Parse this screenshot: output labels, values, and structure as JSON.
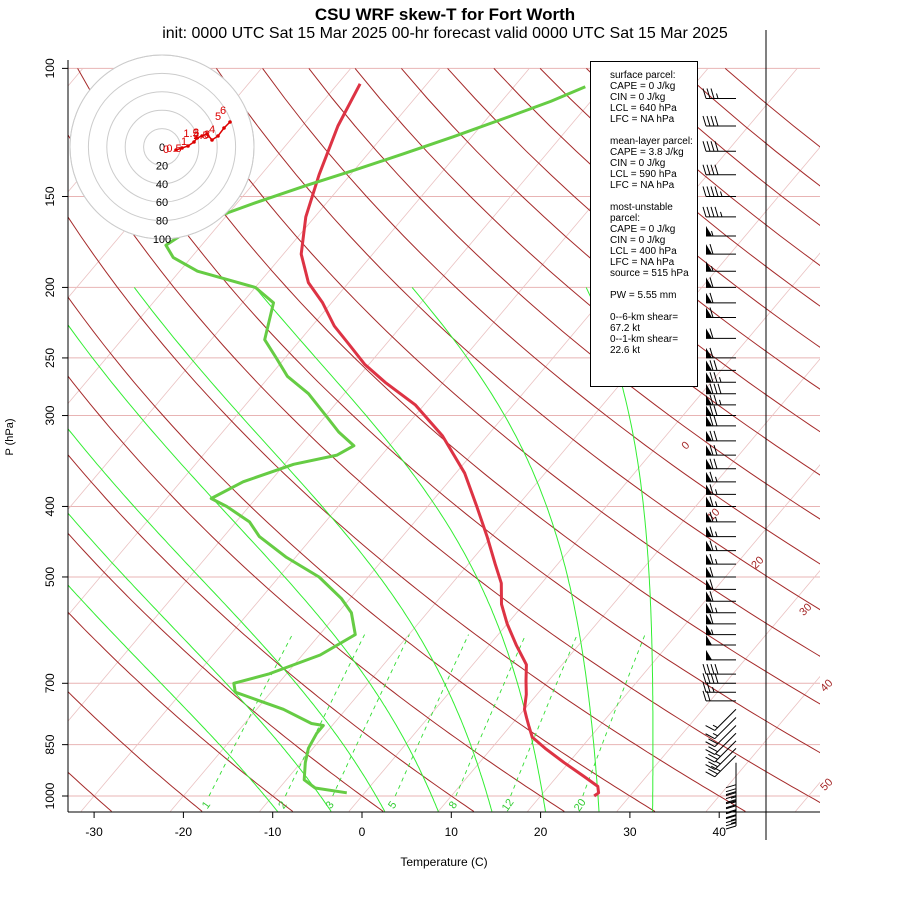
{
  "header": {
    "title": "CSU WRF skew-T for Fort Worth",
    "subtitle": "init: 0000 UTC Sat 15 Mar 2025    00-hr forecast valid 0000 UTC Sat 15 Mar 2025"
  },
  "chart_data": {
    "type": "line",
    "title": "CSU WRF skew-T for Fort Worth",
    "xlabel": "Temperature (C)",
    "ylabel": "P (hPa)",
    "xlim": [
      -33,
      50
    ],
    "ylim": [
      1050,
      100
    ],
    "x_ticks": [
      "-30",
      "-20",
      "-10",
      "0",
      "10",
      "20",
      "30",
      "40"
    ],
    "y_ticks": [
      "100",
      "150",
      "200",
      "250",
      "300",
      "400",
      "500",
      "700",
      "850",
      "1000"
    ],
    "isotherm_labels": [
      "0",
      "10",
      "20",
      "30",
      "40",
      "50"
    ],
    "mixing_ratio_labels": [
      "1",
      "2",
      "3",
      "5",
      "8",
      "12",
      "20"
    ],
    "series": [
      {
        "name": "Temperature",
        "color": "#dd3344",
        "points": [
          [
            26.0,
            1000
          ],
          [
            26.2,
            990
          ],
          [
            25.5,
            970
          ],
          [
            23.0,
            940
          ],
          [
            19.5,
            900
          ],
          [
            16.0,
            860
          ],
          [
            13.5,
            830
          ],
          [
            12.0,
            800
          ],
          [
            11.0,
            780
          ],
          [
            10.0,
            760
          ],
          [
            8.8,
            725
          ],
          [
            7.5,
            695
          ],
          [
            6.0,
            660
          ],
          [
            3.0,
            620
          ],
          [
            0.0,
            580
          ],
          [
            -2.5,
            545
          ],
          [
            -4.5,
            510
          ],
          [
            -7.0,
            480
          ],
          [
            -10.5,
            440
          ],
          [
            -14.5,
            400
          ],
          [
            -19.0,
            360
          ],
          [
            -25.0,
            320
          ],
          [
            -31.0,
            290
          ],
          [
            -36.5,
            270
          ],
          [
            -40.5,
            255
          ],
          [
            -44.0,
            240
          ],
          [
            -47.5,
            226
          ],
          [
            -51.0,
            210
          ],
          [
            -54.5,
            197
          ],
          [
            -58.0,
            180
          ],
          [
            -61.0,
            160
          ],
          [
            -63.5,
            140
          ],
          [
            -66.0,
            120
          ],
          [
            -67.5,
            105
          ]
        ]
      },
      {
        "name": "Dewpoint",
        "color": "#66cc44",
        "points": [
          [
            -2.0,
            990
          ],
          [
            -6.0,
            975
          ],
          [
            -8.0,
            950
          ],
          [
            -9.5,
            900
          ],
          [
            -10.5,
            860
          ],
          [
            -11.0,
            820
          ],
          [
            -11.0,
            800
          ],
          [
            -12.5,
            795
          ],
          [
            -17.0,
            760
          ],
          [
            -24.0,
            720
          ],
          [
            -25.0,
            700
          ],
          [
            -22.0,
            680
          ],
          [
            -18.0,
            640
          ],
          [
            -16.0,
            600
          ],
          [
            -18.5,
            560
          ],
          [
            -21.0,
            535
          ],
          [
            -25.5,
            500
          ],
          [
            -31.0,
            470
          ],
          [
            -36.0,
            440
          ],
          [
            -38.5,
            420
          ],
          [
            -42.5,
            400
          ],
          [
            -45.0,
            390
          ],
          [
            -43.0,
            370
          ],
          [
            -39.0,
            350
          ],
          [
            -35.0,
            340
          ],
          [
            -34.0,
            330
          ],
          [
            -37.0,
            316
          ],
          [
            -40.0,
            300
          ],
          [
            -44.0,
            280
          ],
          [
            -48.0,
            265
          ],
          [
            -51.0,
            250
          ],
          [
            -54.0,
            236
          ],
          [
            -56.5,
            210
          ],
          [
            -60.0,
            200
          ],
          [
            -68.0,
            190
          ],
          [
            -72.0,
            182
          ],
          [
            -74.0,
            175
          ],
          [
            -73.0,
            168
          ],
          [
            -71.0,
            160
          ],
          [
            -68.0,
            153
          ],
          [
            -64.0,
            145
          ],
          [
            -60.0,
            138
          ],
          [
            -56.0,
            131
          ],
          [
            -52.0,
            124
          ],
          [
            -48.0,
            117
          ],
          [
            -44.5,
            111
          ],
          [
            -42.0,
            106
          ]
        ]
      }
    ],
    "wind_barbs": [
      [
        1000,
        "S",
        15
      ],
      [
        990,
        "S",
        15
      ],
      [
        980,
        "S",
        20
      ],
      [
        965,
        "S",
        20
      ],
      [
        950,
        "S",
        25
      ],
      [
        935,
        "S",
        25
      ],
      [
        920,
        "S",
        30
      ],
      [
        900,
        "S",
        30
      ],
      [
        880,
        "SW",
        30
      ],
      [
        860,
        "SW",
        25
      ],
      [
        840,
        "SW",
        25
      ],
      [
        820,
        "SW",
        20
      ],
      [
        800,
        "SW",
        20
      ],
      [
        780,
        "SW",
        15
      ],
      [
        760,
        "SW",
        15
      ],
      [
        740,
        "W",
        20
      ],
      [
        720,
        "W",
        25
      ],
      [
        700,
        "W",
        40
      ],
      [
        680,
        "W",
        40
      ],
      [
        650,
        "W",
        50
      ],
      [
        620,
        "W",
        50
      ],
      [
        600,
        "W",
        55
      ],
      [
        580,
        "W",
        60
      ],
      [
        560,
        "W",
        65
      ],
      [
        540,
        "W",
        60
      ],
      [
        520,
        "W",
        60
      ],
      [
        500,
        "W",
        60
      ],
      [
        480,
        "W",
        65
      ],
      [
        460,
        "W",
        65
      ],
      [
        440,
        "W",
        65
      ],
      [
        420,
        "W",
        65
      ],
      [
        400,
        "W",
        65
      ],
      [
        385,
        "W",
        65
      ],
      [
        370,
        "W",
        65
      ],
      [
        355,
        "W",
        70
      ],
      [
        340,
        "W",
        70
      ],
      [
        325,
        "W",
        70
      ],
      [
        310,
        "W",
        70
      ],
      [
        300,
        "W",
        70
      ],
      [
        290,
        "W",
        75
      ],
      [
        280,
        "W",
        80
      ],
      [
        270,
        "W",
        75
      ],
      [
        260,
        "W",
        70
      ],
      [
        250,
        "W",
        60
      ],
      [
        235,
        "W",
        60
      ],
      [
        220,
        "W",
        60
      ],
      [
        210,
        "W",
        60
      ],
      [
        200,
        "W",
        60
      ],
      [
        190,
        "W",
        55
      ],
      [
        180,
        "W",
        60
      ],
      [
        170,
        "W",
        55
      ],
      [
        160,
        "W",
        45
      ],
      [
        150,
        "W",
        45
      ],
      [
        140,
        "W",
        40
      ],
      [
        130,
        "W",
        40
      ],
      [
        120,
        "W",
        40
      ],
      [
        110,
        "W",
        35
      ]
    ],
    "hodograph": {
      "rings": [
        "0",
        "20",
        "40",
        "60",
        "80",
        "100"
      ],
      "labels": [
        "0",
        "0.5",
        "1",
        "1.5",
        "2",
        "2.5",
        "3",
        "4",
        "5",
        "6"
      ]
    }
  },
  "info": {
    "surface": {
      "title": "surface parcel:",
      "cape": "CAPE = 0 J/kg",
      "cin": "CIN = 0 J/kg",
      "lcl": "LCL = 640 hPa",
      "lfc": "LFC = NA hPa"
    },
    "mean_layer": {
      "title": "mean-layer parcel:",
      "cape": "CAPE = 3.8 J/kg",
      "cin": "CIN = 0 J/kg",
      "lcl": "LCL = 590 hPa",
      "lfc": "LFC = NA hPa"
    },
    "most_unstable": {
      "title": "most-unstable parcel:",
      "cape": "CAPE = 0 J/kg",
      "cin": "CIN = 0 J/kg",
      "lcl": "LCL = 400 hPa",
      "lfc": "LFC = NA hPa",
      "source": "source = 515 hPa"
    },
    "pw": "PW =  5.55 mm",
    "shear6": "0--6-km shear= 67.2 kt",
    "shear1": "0--1-km shear= 22.6 kt"
  }
}
